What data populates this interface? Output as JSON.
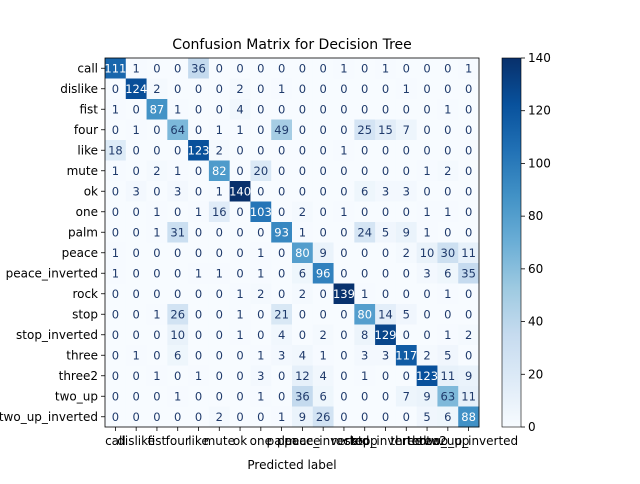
{
  "chart_data": {
    "type": "heatmap",
    "title": "Confusion Matrix for Decision Tree",
    "xlabel": "Predicted label",
    "ylabel": "",
    "labels": [
      "call",
      "dislike",
      "fist",
      "four",
      "like",
      "mute",
      "ok",
      "one",
      "palm",
      "peace",
      "peace_inverted",
      "rock",
      "stop",
      "stop_inverted",
      "three",
      "three2",
      "two_up",
      "two_up_inverted"
    ],
    "matrix": [
      [
        111,
        1,
        0,
        0,
        36,
        0,
        0,
        0,
        0,
        0,
        0,
        1,
        0,
        1,
        0,
        0,
        0,
        1
      ],
      [
        0,
        124,
        2,
        0,
        0,
        0,
        2,
        0,
        1,
        0,
        0,
        0,
        0,
        0,
        1,
        0,
        0,
        0
      ],
      [
        1,
        0,
        87,
        1,
        0,
        0,
        4,
        0,
        0,
        0,
        0,
        0,
        0,
        0,
        0,
        0,
        1,
        0
      ],
      [
        0,
        1,
        0,
        64,
        0,
        1,
        1,
        0,
        49,
        0,
        0,
        0,
        25,
        15,
        7,
        0,
        0,
        0
      ],
      [
        18,
        0,
        0,
        0,
        123,
        2,
        0,
        0,
        0,
        0,
        0,
        1,
        0,
        0,
        0,
        0,
        0,
        0
      ],
      [
        1,
        0,
        2,
        1,
        0,
        82,
        0,
        20,
        0,
        0,
        0,
        0,
        0,
        0,
        0,
        1,
        2,
        0
      ],
      [
        0,
        3,
        0,
        3,
        0,
        1,
        140,
        0,
        0,
        0,
        0,
        0,
        6,
        3,
        3,
        0,
        0,
        0
      ],
      [
        0,
        0,
        1,
        0,
        1,
        16,
        0,
        103,
        0,
        2,
        0,
        1,
        0,
        0,
        0,
        1,
        1,
        0
      ],
      [
        0,
        0,
        1,
        31,
        0,
        0,
        0,
        0,
        93,
        1,
        0,
        0,
        24,
        5,
        9,
        1,
        0,
        0
      ],
      [
        1,
        0,
        0,
        0,
        0,
        0,
        0,
        1,
        0,
        80,
        9,
        0,
        0,
        0,
        2,
        10,
        30,
        11
      ],
      [
        1,
        0,
        0,
        0,
        1,
        1,
        0,
        1,
        0,
        6,
        96,
        0,
        0,
        0,
        0,
        3,
        6,
        35
      ],
      [
        0,
        0,
        0,
        0,
        0,
        0,
        1,
        2,
        0,
        2,
        0,
        139,
        1,
        0,
        0,
        0,
        1,
        0
      ],
      [
        0,
        0,
        1,
        26,
        0,
        0,
        1,
        0,
        21,
        0,
        0,
        0,
        80,
        14,
        5,
        0,
        0,
        0
      ],
      [
        0,
        0,
        0,
        10,
        0,
        0,
        1,
        0,
        4,
        0,
        2,
        0,
        8,
        129,
        0,
        0,
        1,
        2
      ],
      [
        0,
        1,
        0,
        6,
        0,
        0,
        0,
        1,
        3,
        4,
        1,
        0,
        3,
        3,
        117,
        2,
        5,
        0
      ],
      [
        0,
        0,
        1,
        0,
        1,
        0,
        0,
        3,
        0,
        12,
        4,
        0,
        1,
        0,
        0,
        123,
        11,
        9
      ],
      [
        0,
        0,
        0,
        1,
        0,
        0,
        0,
        1,
        0,
        36,
        6,
        0,
        0,
        0,
        7,
        9,
        63,
        11
      ],
      [
        0,
        0,
        0,
        0,
        0,
        2,
        0,
        0,
        1,
        9,
        26,
        0,
        0,
        0,
        0,
        5,
        6,
        88
      ]
    ],
    "color_range": [
      0,
      140
    ],
    "colorbar_ticks": [
      0,
      20,
      40,
      60,
      80,
      100,
      120,
      140
    ],
    "colormap": "Blues",
    "colors": {
      "low": "#f7fbff",
      "high": "#08306b",
      "text_dark": "#1f3a6b",
      "text_light": "#ffffff"
    }
  }
}
